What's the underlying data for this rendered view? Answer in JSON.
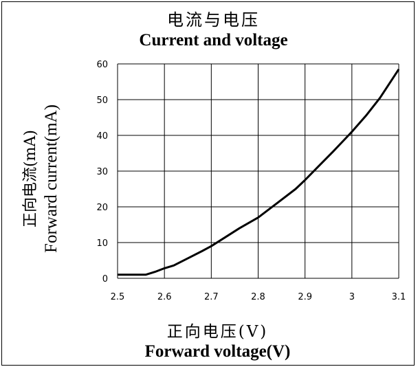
{
  "chart_data": {
    "type": "line",
    "title": "电流与电压",
    "subtitle": "Current and voltage",
    "xlabel_cn": "正向电压(V)",
    "xlabel": "Forward voltage(V)",
    "ylabel_cn": "正向电流(mA)",
    "ylabel": "Forward current(mA)",
    "xlim": [
      2.5,
      3.1
    ],
    "ylim": [
      0,
      60
    ],
    "xticks": [
      "2.5",
      "2.6",
      "2.7",
      "2.8",
      "2.9",
      "3",
      "3.1"
    ],
    "yticks": [
      "0",
      "10",
      "20",
      "30",
      "40",
      "50",
      "60"
    ],
    "grid": true,
    "series": [
      {
        "x": [
          2.5,
          2.53,
          2.56,
          2.58,
          2.6,
          2.62,
          2.65,
          2.68,
          2.7,
          2.73,
          2.76,
          2.8,
          2.84,
          2.88,
          2.9,
          2.93,
          2.96,
          3.0,
          3.03,
          3.06,
          3.08,
          3.1
        ],
        "y": [
          1,
          1,
          1,
          1.8,
          2.8,
          3.6,
          5.6,
          7.6,
          9.0,
          11.5,
          14.0,
          17.0,
          21.0,
          25.0,
          27.5,
          31.5,
          35.5,
          41.0,
          45.5,
          50.5,
          54.5,
          58.5
        ]
      }
    ],
    "line_color": "#000000"
  }
}
